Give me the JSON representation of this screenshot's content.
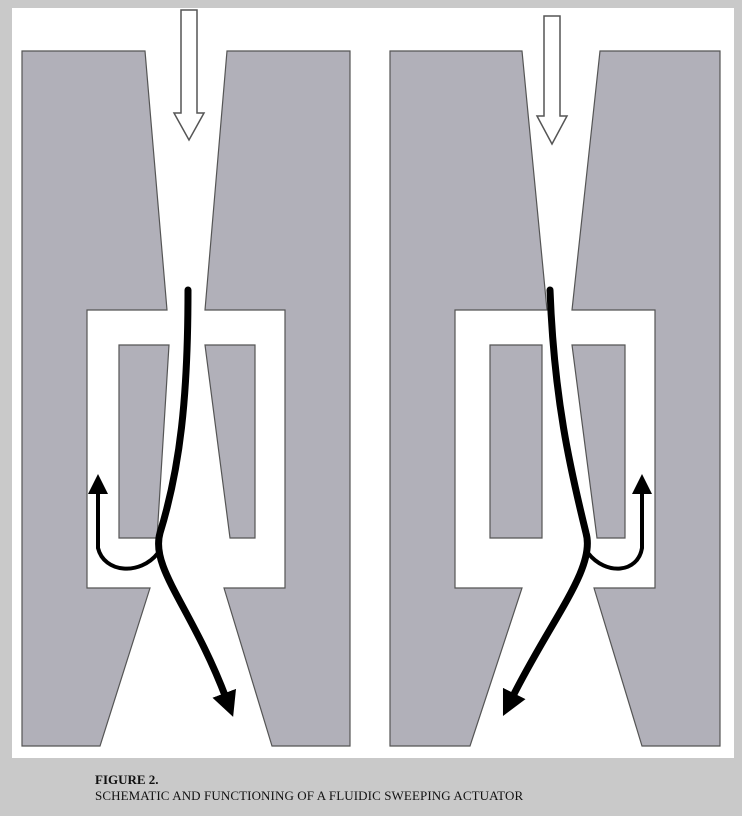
{
  "figure": {
    "label": "FIGURE 2.",
    "caption": "SCHEMATIC AND FUNCTIONING OF A FLUIDIC SWEEPING ACTUATOR"
  },
  "colors": {
    "page_background": "#c9c9c9",
    "panel_background": "#ffffff",
    "body_fill": "#b1b0b9",
    "body_outline": "#555555",
    "flow_arrow": "#000000"
  },
  "icons": {
    "inlet_arrow": "down-arrow-icon",
    "flow_path": "flow-arrow-icon"
  }
}
